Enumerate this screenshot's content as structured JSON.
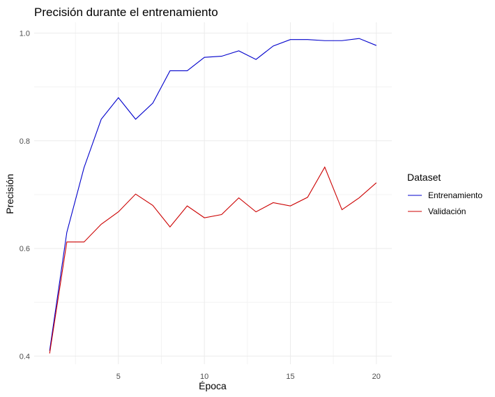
{
  "chart_data": {
    "type": "line",
    "title": "Precisión durante el entrenamiento",
    "xlabel": "Época",
    "ylabel": "Precisión",
    "xlim": [
      0.1,
      20.9
    ],
    "ylim": [
      0.385,
      1.02
    ],
    "x_ticks": [
      5,
      10,
      15,
      20
    ],
    "y_ticks": [
      0.4,
      0.6,
      0.8,
      1.0
    ],
    "y_tick_labels": [
      "0.4",
      "0.6",
      "0.8",
      "1.0"
    ],
    "grid": true,
    "legend": {
      "title": "Dataset",
      "position": "right"
    },
    "x": [
      1,
      2,
      3,
      4,
      5,
      6,
      7,
      8,
      9,
      10,
      11,
      12,
      13,
      14,
      15,
      16,
      17,
      18,
      19,
      20
    ],
    "series": [
      {
        "name": "Entrenamiento",
        "color": "#0000cc",
        "values": [
          0.41,
          0.63,
          0.75,
          0.84,
          0.88,
          0.84,
          0.87,
          0.93,
          0.93,
          0.955,
          0.957,
          0.967,
          0.951,
          0.976,
          0.988,
          0.988,
          0.986,
          0.986,
          0.99,
          0.977
        ]
      },
      {
        "name": "Validación",
        "color": "#cc0000",
        "values": [
          0.405,
          0.612,
          0.612,
          0.645,
          0.668,
          0.701,
          0.68,
          0.64,
          0.679,
          0.657,
          0.663,
          0.694,
          0.668,
          0.685,
          0.679,
          0.695,
          0.751,
          0.672,
          0.694,
          0.722
        ]
      }
    ]
  }
}
